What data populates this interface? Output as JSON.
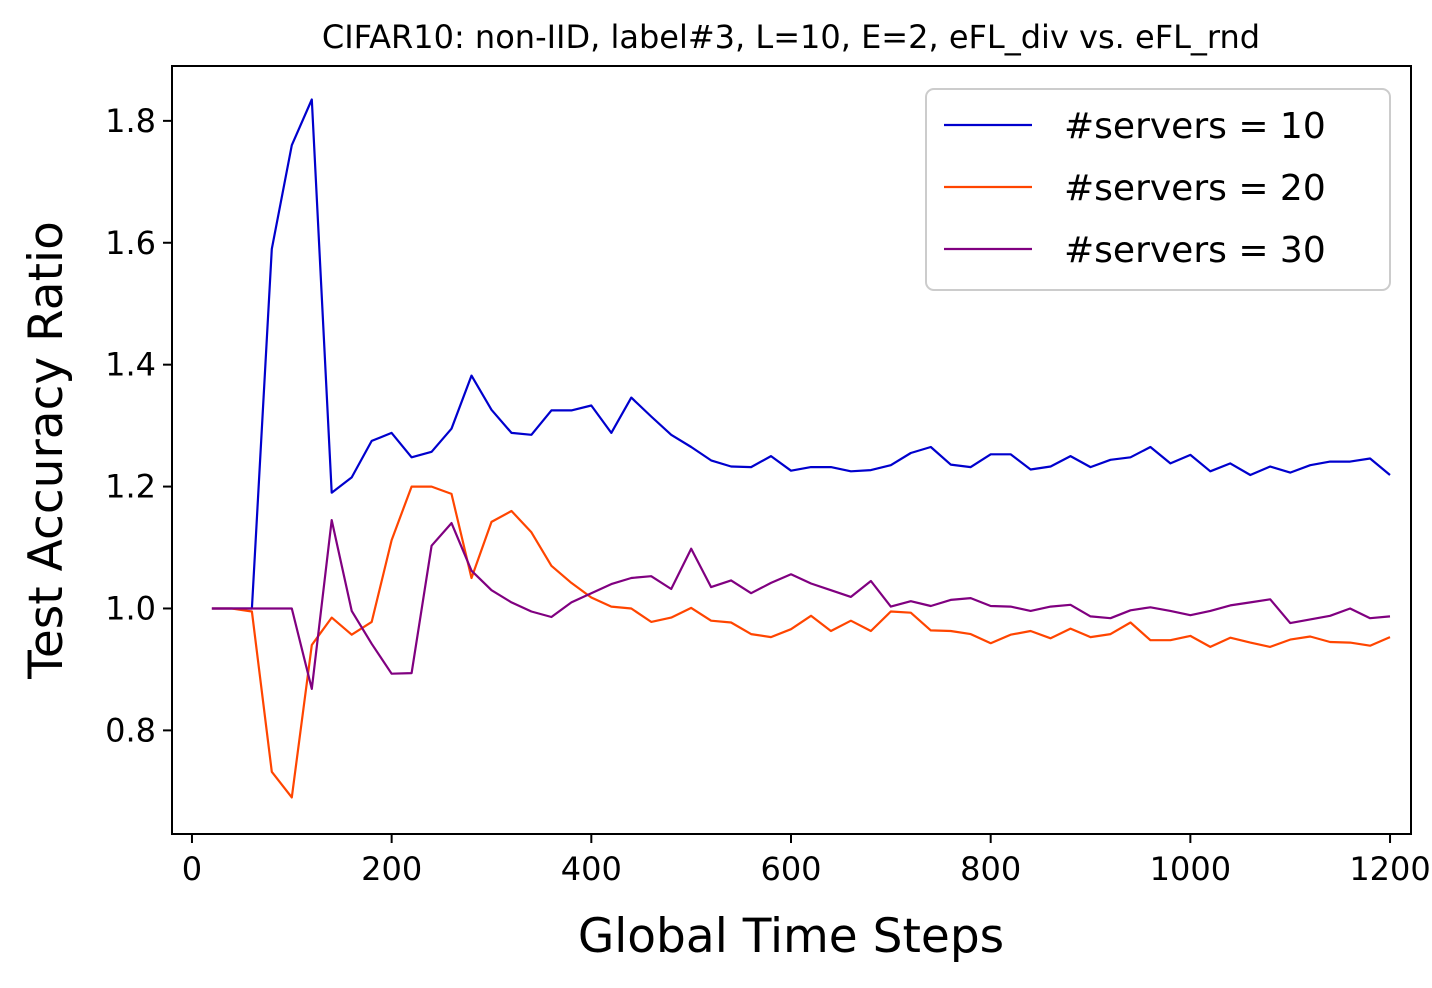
{
  "chart_data": {
    "type": "line",
    "title": "CIFAR10: non-IID, label#3, L=10, E=2, eFL_div vs. eFL_rnd",
    "xlabel": "Global Time Steps",
    "ylabel": "Test Accuracy Ratio",
    "xlim": [
      -20,
      1221
    ],
    "ylim": [
      0.63,
      1.89
    ],
    "xticks": [
      0,
      200,
      400,
      600,
      800,
      1000,
      1200
    ],
    "xtick_labels": [
      "0",
      "200",
      "400",
      "600",
      "800",
      "1000",
      "1200"
    ],
    "yticks": [
      0.8,
      1.0,
      1.2,
      1.4,
      1.6,
      1.8
    ],
    "ytick_labels": [
      "0.8",
      "1.0",
      "1.2",
      "1.4",
      "1.6",
      "1.8"
    ],
    "grid": false,
    "legend_position": "top-right",
    "x": [
      20,
      40,
      60,
      80,
      100,
      120,
      140,
      160,
      180,
      200,
      220,
      240,
      260,
      280,
      300,
      320,
      340,
      360,
      380,
      400,
      420,
      440,
      460,
      480,
      500,
      520,
      540,
      560,
      580,
      600,
      620,
      640,
      660,
      680,
      700,
      720,
      740,
      760,
      780,
      800,
      820,
      840,
      860,
      880,
      900,
      920,
      940,
      960,
      980,
      1000,
      1020,
      1040,
      1060,
      1080,
      1100,
      1120,
      1140,
      1160,
      1180,
      1200
    ],
    "series": [
      {
        "name": "#servers = 10",
        "color": "#0000cd",
        "values": [
          1.0,
          1.0,
          1.0,
          1.59,
          1.76,
          1.835,
          1.19,
          1.215,
          1.275,
          1.288,
          1.248,
          1.257,
          1.295,
          1.382,
          1.326,
          1.288,
          1.285,
          1.325,
          1.325,
          1.333,
          1.288,
          1.346,
          1.315,
          1.285,
          1.265,
          1.243,
          1.233,
          1.232,
          1.25,
          1.226,
          1.232,
          1.232,
          1.225,
          1.227,
          1.235,
          1.255,
          1.265,
          1.236,
          1.232,
          1.253,
          1.253,
          1.228,
          1.233,
          1.25,
          1.232,
          1.244,
          1.248,
          1.265,
          1.238,
          1.252,
          1.225,
          1.238,
          1.219,
          1.233,
          1.223,
          1.235,
          1.241,
          1.241,
          1.246,
          1.219
        ]
      },
      {
        "name": "#servers = 20",
        "color": "#ff4500",
        "values": [
          1.0,
          1.0,
          0.995,
          0.732,
          0.69,
          0.94,
          0.985,
          0.957,
          0.978,
          1.112,
          1.2,
          1.2,
          1.188,
          1.05,
          1.142,
          1.16,
          1.125,
          1.07,
          1.042,
          1.018,
          1.003,
          1.0,
          0.978,
          0.985,
          1.001,
          0.98,
          0.977,
          0.958,
          0.953,
          0.966,
          0.988,
          0.963,
          0.98,
          0.963,
          0.995,
          0.993,
          0.964,
          0.963,
          0.958,
          0.943,
          0.957,
          0.963,
          0.951,
          0.967,
          0.953,
          0.958,
          0.977,
          0.948,
          0.948,
          0.955,
          0.937,
          0.952,
          0.944,
          0.937,
          0.949,
          0.954,
          0.945,
          0.944,
          0.939,
          0.953
        ]
      },
      {
        "name": "#servers = 30",
        "color": "#800080",
        "values": [
          1.0,
          1.0,
          1.0,
          1.0,
          1.0,
          0.868,
          1.145,
          0.996,
          0.942,
          0.893,
          0.894,
          1.103,
          1.14,
          1.062,
          1.03,
          1.01,
          0.995,
          0.986,
          1.01,
          1.025,
          1.04,
          1.05,
          1.053,
          1.032,
          1.098,
          1.035,
          1.046,
          1.025,
          1.042,
          1.056,
          1.041,
          1.03,
          1.019,
          1.045,
          1.003,
          1.012,
          1.004,
          1.014,
          1.017,
          1.004,
          1.003,
          0.996,
          1.003,
          1.006,
          0.987,
          0.984,
          0.997,
          1.002,
          0.996,
          0.989,
          0.996,
          1.005,
          1.01,
          1.015,
          0.976,
          0.982,
          0.988,
          1.0,
          0.984,
          0.987
        ]
      }
    ]
  }
}
